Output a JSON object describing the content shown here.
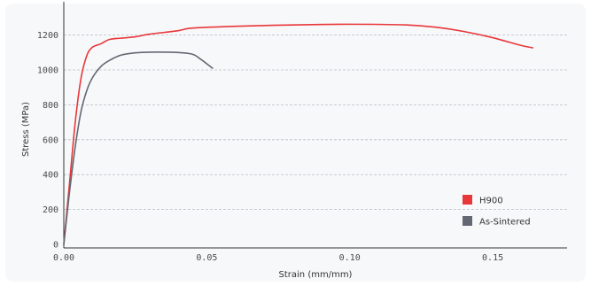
{
  "chart_data": {
    "type": "line",
    "xlabel": "Strain (mm/mm)",
    "ylabel": "Stress (MPa)",
    "xlim": [
      0,
      0.176
    ],
    "ylim": [
      -20,
      1340
    ],
    "x_ticks": [
      "0.00",
      "0.05",
      "0.10",
      "0.15"
    ],
    "x_tick_values": [
      0,
      0.05,
      0.1,
      0.15
    ],
    "y_ticks": [
      "0",
      "200",
      "400",
      "600",
      "800",
      "1000",
      "1200"
    ],
    "y_tick_values": [
      0,
      200,
      400,
      600,
      800,
      1000,
      1200
    ],
    "grid": "horizontal dashed",
    "legend_position": "bottom-right",
    "series": [
      {
        "name": "H900",
        "color": "#e8373a",
        "points": [
          [
            0.0,
            0
          ],
          [
            0.002,
            350
          ],
          [
            0.004,
            700
          ],
          [
            0.006,
            950
          ],
          [
            0.008,
            1080
          ],
          [
            0.01,
            1130
          ],
          [
            0.013,
            1150
          ],
          [
            0.016,
            1175
          ],
          [
            0.02,
            1182
          ],
          [
            0.025,
            1190
          ],
          [
            0.03,
            1205
          ],
          [
            0.04,
            1225
          ],
          [
            0.045,
            1240
          ],
          [
            0.06,
            1250
          ],
          [
            0.08,
            1258
          ],
          [
            0.1,
            1262
          ],
          [
            0.12,
            1258
          ],
          [
            0.13,
            1245
          ],
          [
            0.14,
            1220
          ],
          [
            0.15,
            1185
          ],
          [
            0.16,
            1140
          ],
          [
            0.164,
            1127
          ]
        ]
      },
      {
        "name": "As-Sintered",
        "color": "#636872",
        "points": [
          [
            0.0,
            0
          ],
          [
            0.002,
            300
          ],
          [
            0.004,
            560
          ],
          [
            0.006,
            760
          ],
          [
            0.008,
            880
          ],
          [
            0.01,
            955
          ],
          [
            0.013,
            1020
          ],
          [
            0.016,
            1055
          ],
          [
            0.02,
            1085
          ],
          [
            0.025,
            1098
          ],
          [
            0.03,
            1102
          ],
          [
            0.04,
            1100
          ],
          [
            0.045,
            1090
          ],
          [
            0.048,
            1060
          ],
          [
            0.052,
            1010
          ]
        ]
      }
    ]
  }
}
